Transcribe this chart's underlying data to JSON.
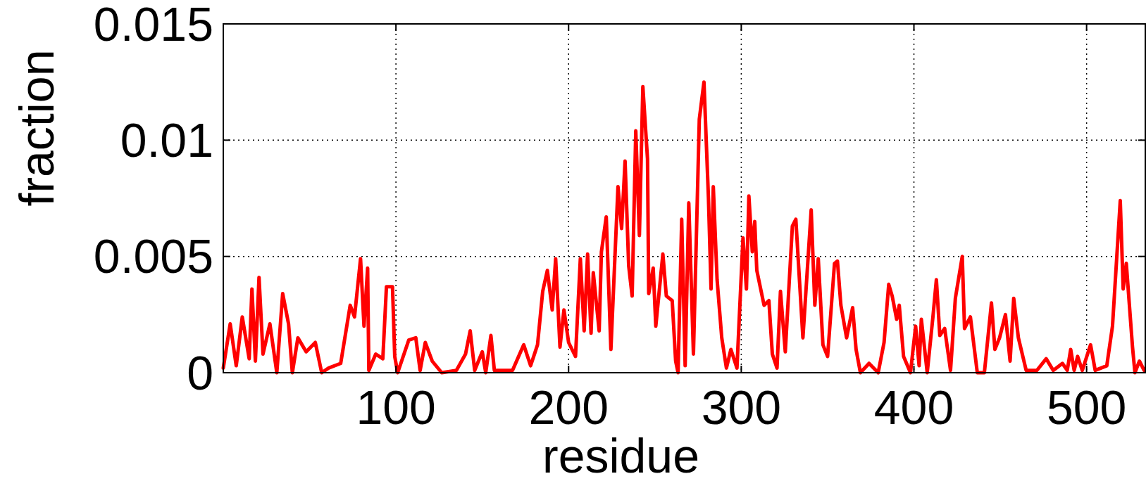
{
  "chart_data": {
    "type": "line",
    "xlabel": "residue",
    "ylabel": "fraction",
    "xlim": [
      0,
      534
    ],
    "xticks": [
      100,
      200,
      300,
      400,
      500
    ],
    "ylim": [
      0,
      0.015
    ],
    "yticks": [
      0,
      0.005,
      0.01,
      0.015
    ],
    "grid": true,
    "marker": "none",
    "line_style": "solid",
    "series": [
      {
        "color": "#ff0000",
        "x": [
          0,
          4,
          7.5,
          11,
          15,
          16.6,
          18.6,
          20.7,
          23,
          27,
          31,
          34.4,
          37.8,
          40,
          43.2,
          48,
          53.3,
          57,
          61,
          68,
          73.5,
          76,
          79.5,
          81.5,
          83.6,
          84.3,
          88.3,
          92.4,
          94.5,
          98,
          99.3,
          101,
          107.4,
          111.5,
          114,
          117,
          121,
          126.5,
          135,
          140.3,
          143,
          145.6,
          150,
          152,
          155,
          157,
          167.5,
          174,
          178,
          182,
          185,
          187.7,
          190.5,
          192.5,
          195,
          197.3,
          200,
          204,
          206.8,
          209,
          211,
          213,
          214.3,
          217.7,
          219,
          221.8,
          224.5,
          228.6,
          230.7,
          232.7,
          234.8,
          236.8,
          238.9,
          241,
          243,
          245.7,
          246.4,
          249,
          250.5,
          254.6,
          256.6,
          260,
          262,
          263.4,
          265.5,
          267.5,
          269.6,
          272.3,
          275.7,
          278.4,
          281,
          282.5,
          283.8,
          286,
          288.7,
          291.4,
          294,
          297.5,
          301,
          303,
          304.4,
          306.4,
          307.8,
          309,
          313.2,
          316,
          318,
          320.7,
          322.7,
          325.5,
          329.6,
          331.6,
          335.7,
          340.5,
          342.6,
          344.6,
          347.3,
          350,
          354,
          355.7,
          357.7,
          361,
          364.5,
          366.5,
          369,
          374,
          379.3,
          382.7,
          385.4,
          387.4,
          390,
          391.5,
          394,
          398,
          401,
          403,
          404.3,
          407.7,
          411,
          413,
          415,
          417.8,
          421.2,
          424,
          428,
          429.3,
          432.7,
          436.7,
          440.8,
          444.9,
          446.9,
          449.6,
          453,
          455.7,
          457.8,
          460.5,
          465,
          471.2,
          476.6,
          480.7,
          486,
          488.8,
          490.8,
          492.8,
          494.8,
          497.5,
          502.3,
          505,
          511.7,
          515,
          519.5,
          521.2,
          523,
          526.6,
          528,
          530.6,
          533.3
        ],
        "values": [
          0.0002,
          0.0021,
          0.0003,
          0.0024,
          0.0006,
          0.0036,
          0.0005,
          0.0041,
          0.0008,
          0.0021,
          0,
          0.0034,
          0.0021,
          0,
          0.0015,
          0.0009,
          0.0013,
          0,
          0.0002,
          0.0004,
          0.0029,
          0.0024,
          0.0049,
          0.002,
          0.0045,
          0.0001,
          0.0008,
          0.0006,
          0.0037,
          0.0037,
          0.0007,
          0,
          0.0014,
          0.0015,
          0.0001,
          0.0013,
          0.0005,
          0,
          0.0001,
          0.0008,
          0.0018,
          0.0001,
          0.0009,
          0,
          0.0016,
          0.0001,
          0.0001,
          0.0012,
          0.0003,
          0.0012,
          0.0035,
          0.0044,
          0.0027,
          0.0049,
          0.0011,
          0.0027,
          0.0013,
          0.0007,
          0.0049,
          0.0018,
          0.0051,
          0.0017,
          0.0043,
          0.0018,
          0.0052,
          0.0067,
          0.001,
          0.008,
          0.0062,
          0.0091,
          0.0046,
          0.0033,
          0.0104,
          0.0059,
          0.0123,
          0.0092,
          0.0034,
          0.0045,
          0.002,
          0.0051,
          0.0033,
          0.0031,
          0.0005,
          0,
          0.0066,
          0.0003,
          0.0073,
          0.0008,
          0.0109,
          0.0125,
          0.0075,
          0.0036,
          0.008,
          0.004,
          0.0015,
          0.0002,
          0.001,
          0.0002,
          0.0058,
          0.0036,
          0.0076,
          0.0052,
          0.0065,
          0.0044,
          0.0029,
          0.0031,
          0.0008,
          0.0002,
          0.0035,
          0.0009,
          0.0063,
          0.0066,
          0.0015,
          0.007,
          0.0029,
          0.0049,
          0.0012,
          0.0007,
          0.0047,
          0.0048,
          0.0029,
          0.0015,
          0.0028,
          0.001,
          0,
          0.0004,
          0,
          0.0013,
          0.0038,
          0.0033,
          0.0023,
          0.0029,
          0.0007,
          0,
          0.002,
          0.0003,
          0.0023,
          0,
          0.0024,
          0.004,
          0.0016,
          0.0019,
          0.0001,
          0.0032,
          0.005,
          0.0019,
          0.0024,
          0,
          0,
          0.003,
          0.001,
          0.0015,
          0.0025,
          0.0005,
          0.0032,
          0.0015,
          0.0001,
          0.0001,
          0.0006,
          0.0001,
          0.0004,
          0.0001,
          0.001,
          0.0001,
          0.0007,
          0.0001,
          0.0012,
          0.0001,
          0.0003,
          0.002,
          0.0074,
          0.0036,
          0.0047,
          0.0011,
          0,
          0.0005,
          0.0001
        ]
      }
    ]
  }
}
